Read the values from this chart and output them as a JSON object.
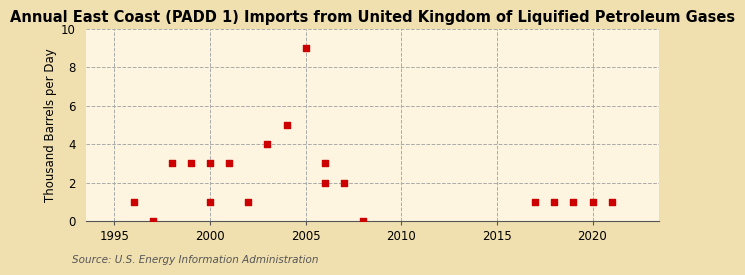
{
  "title": "Annual East Coast (PADD 1) Imports from United Kingdom of Liquified Petroleum Gases",
  "ylabel": "Thousand Barrels per Day",
  "source": "Source: U.S. Energy Information Administration",
  "background_color": "#f0e0b0",
  "plot_background_color": "#fdf5e0",
  "marker_color": "#cc0000",
  "years": [
    1996,
    1997,
    1998,
    1999,
    2000,
    2000,
    2001,
    2002,
    2003,
    2004,
    2005,
    2006,
    2006,
    2007,
    2008,
    2017,
    2018,
    2019,
    2020,
    2021
  ],
  "values": [
    1,
    0,
    3,
    3,
    1,
    3,
    3,
    1,
    4,
    5,
    9,
    3,
    2,
    2,
    0,
    1,
    1,
    1,
    1,
    1
  ],
  "xlim": [
    1993.5,
    2023.5
  ],
  "ylim": [
    0,
    10
  ],
  "xticks": [
    1995,
    2000,
    2005,
    2010,
    2015,
    2020
  ],
  "yticks": [
    0,
    2,
    4,
    6,
    8,
    10
  ],
  "grid_color": "#aaaaaa",
  "vgrid_years": [
    1995,
    2000,
    2005,
    2010,
    2015,
    2020
  ],
  "title_fontsize": 10.5,
  "ylabel_fontsize": 8.5,
  "tick_fontsize": 8.5,
  "source_fontsize": 7.5
}
